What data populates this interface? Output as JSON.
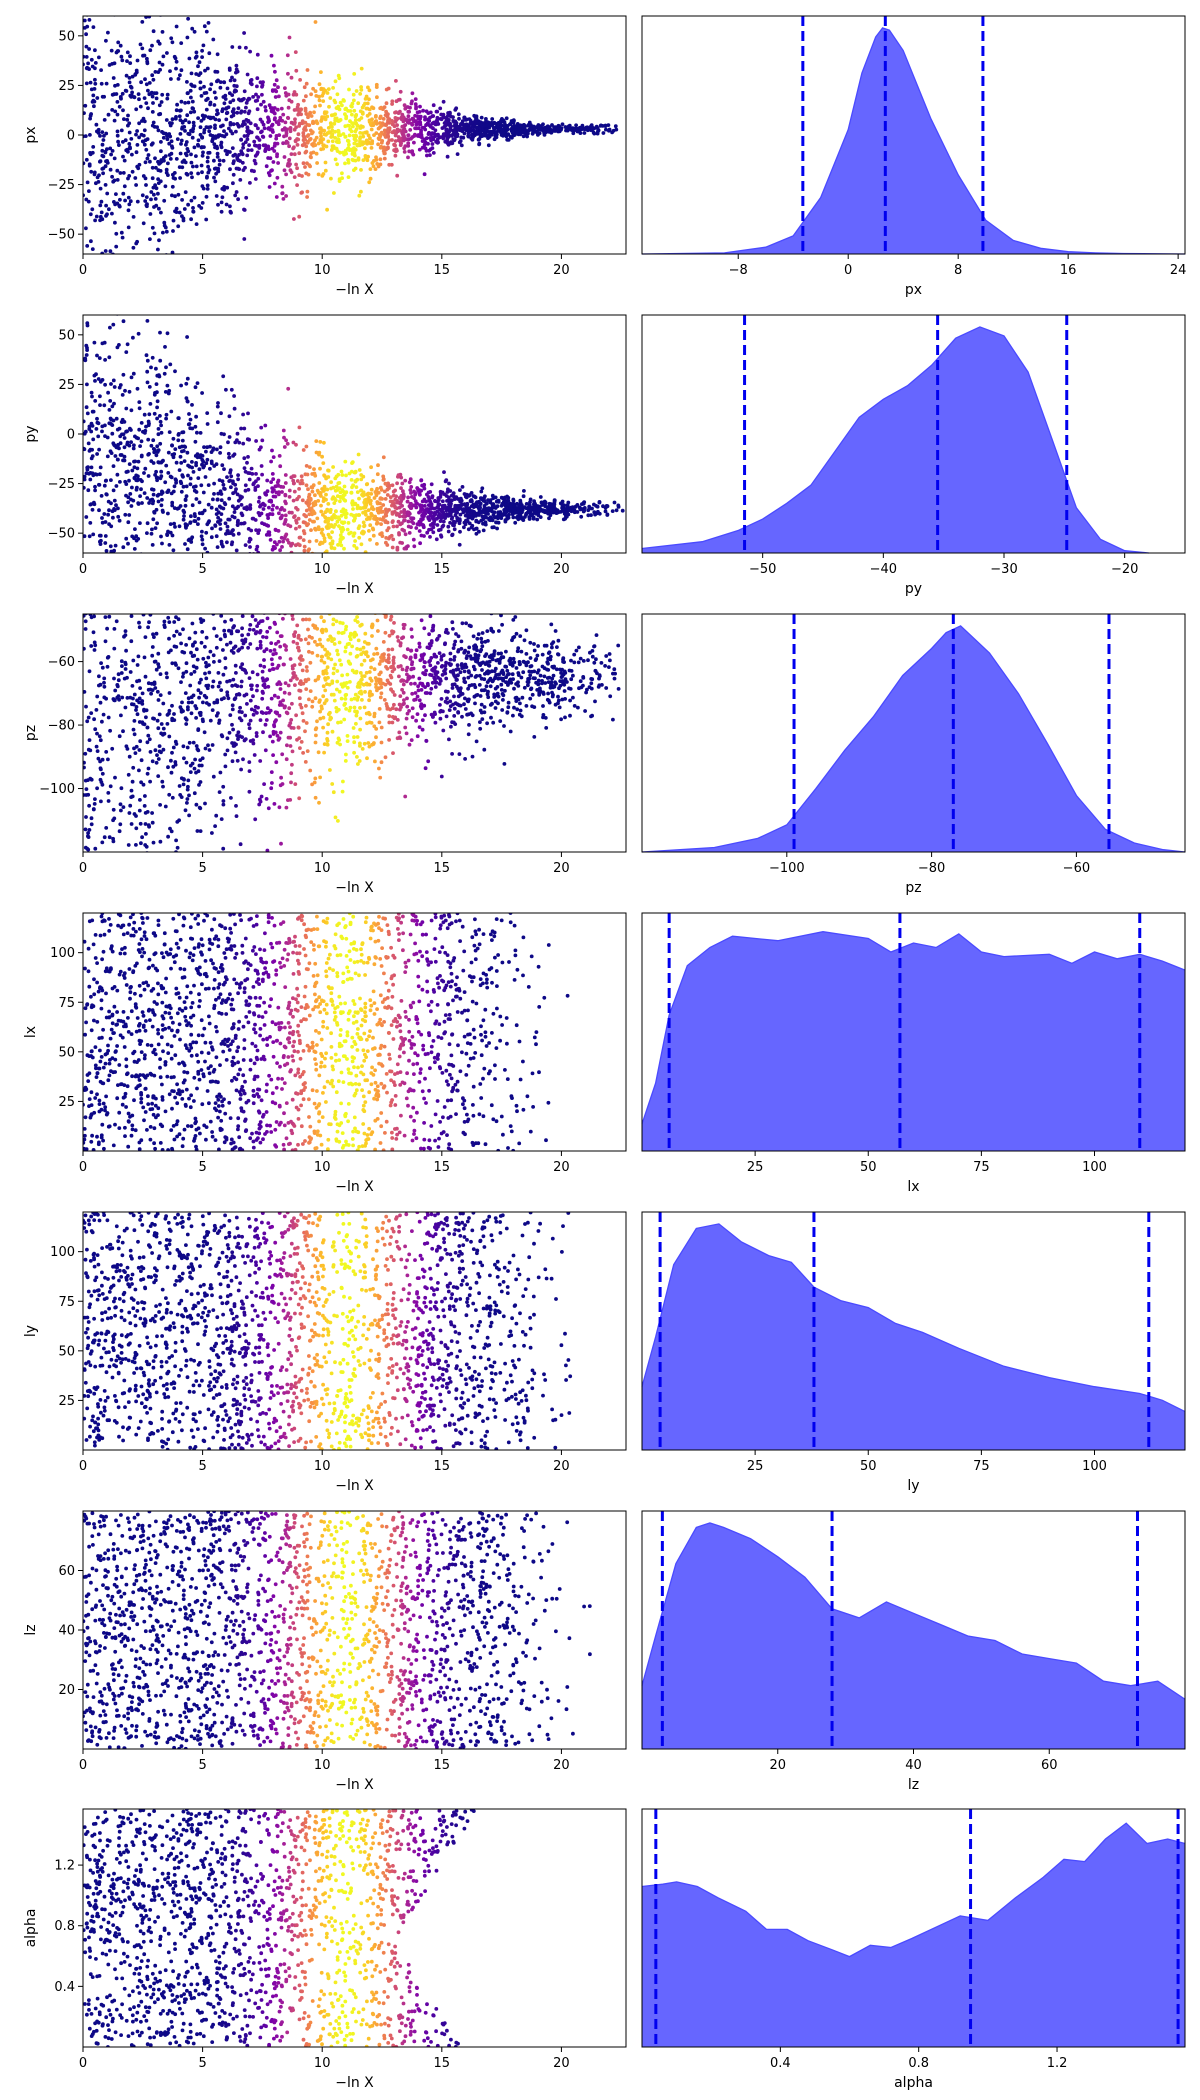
{
  "chart_data": [
    {
      "type": "scatter",
      "row": 0,
      "panel": "trace",
      "xlabel": "−ln X",
      "ylabel": "px",
      "xlim": [
        0,
        22.7
      ],
      "ylim": [
        -60,
        60
      ],
      "xticks": [
        0,
        5,
        10,
        15,
        20
      ],
      "yticks": [
        -50,
        -25,
        0,
        25,
        50
      ],
      "ytick_labels": [
        "−50",
        "−25",
        "0",
        "25",
        "50"
      ],
      "trace": {
        "spread_start": 70,
        "spread_end": 2,
        "center_start": 0,
        "center_end": 3,
        "tail_end": 22.4,
        "peak_x": 11,
        "peak_width": 2.6
      },
      "color_map": "plasma"
    },
    {
      "type": "area",
      "row": 0,
      "panel": "marginal",
      "xlabel": "px",
      "xlim": [
        -15,
        24.5
      ],
      "xticks": [
        -8,
        0,
        8,
        16,
        24
      ],
      "xtick_labels": [
        "−8",
        "0",
        "8",
        "16",
        "24"
      ],
      "x": [
        -15,
        -9,
        -6,
        -4,
        -2,
        0,
        1,
        2,
        2.5,
        3,
        4,
        6,
        8,
        10,
        12,
        14,
        16,
        18,
        20,
        24.5
      ],
      "density": [
        0,
        0.005,
        0.03,
        0.08,
        0.25,
        0.55,
        0.8,
        0.96,
        1.0,
        0.99,
        0.9,
        0.6,
        0.35,
        0.15,
        0.06,
        0.025,
        0.01,
        0.005,
        0.002,
        0
      ],
      "quantiles": [
        -3.3,
        2.7,
        9.8
      ],
      "fill_color": "#6666ff",
      "line_color": "#4a4aff",
      "quantile_color": "#0000ee"
    },
    {
      "type": "scatter",
      "row": 1,
      "panel": "trace",
      "xlabel": "−ln X",
      "ylabel": "py",
      "xlim": [
        0,
        22.7
      ],
      "ylim": [
        -60,
        60
      ],
      "xticks": [
        0,
        5,
        10,
        15,
        20
      ],
      "yticks": [
        -50,
        -25,
        0,
        25,
        50
      ],
      "ytick_labels": [
        "−50",
        "−25",
        "0",
        "25",
        "50"
      ],
      "trace": {
        "spread_start": 70,
        "spread_end": 4,
        "center_start": -5,
        "center_end": -38,
        "tail_end": 22.4,
        "peak_x": 11,
        "peak_width": 2.6
      },
      "color_map": "plasma"
    },
    {
      "type": "area",
      "row": 1,
      "panel": "marginal",
      "xlabel": "py",
      "xlim": [
        -60,
        -15
      ],
      "xticks": [
        -50,
        -40,
        -30,
        -20
      ],
      "xtick_labels": [
        "−50",
        "−40",
        "−30",
        "−20"
      ],
      "x": [
        -60,
        -55,
        -52,
        -50,
        -48,
        -46,
        -44,
        -42,
        -40,
        -38,
        -36,
        -34,
        -32,
        -30,
        -28,
        -26,
        -24,
        -22,
        -20,
        -18
      ],
      "density": [
        0.02,
        0.05,
        0.1,
        0.15,
        0.22,
        0.3,
        0.45,
        0.6,
        0.68,
        0.74,
        0.83,
        0.95,
        1.0,
        0.96,
        0.8,
        0.5,
        0.2,
        0.06,
        0.01,
        0
      ],
      "quantiles": [
        -51.5,
        -35.5,
        -24.8
      ],
      "fill_color": "#6666ff",
      "line_color": "#4a4aff",
      "quantile_color": "#0000ee"
    },
    {
      "type": "scatter",
      "row": 2,
      "panel": "trace",
      "xlabel": "−ln X",
      "ylabel": "pz",
      "xlim": [
        0,
        22.7
      ],
      "ylim": [
        -120,
        -45
      ],
      "xticks": [
        0,
        5,
        10,
        15,
        20
      ],
      "yticks": [
        -100,
        -80,
        -60
      ],
      "ytick_labels": [
        "−100",
        "−80",
        "−60"
      ],
      "trace": {
        "spread_start": 60,
        "spread_end": 12,
        "center_start": -85,
        "center_end": -65,
        "tail_end": 22.5,
        "peak_x": 11,
        "peak_width": 2.6
      },
      "color_map": "plasma"
    },
    {
      "type": "area",
      "row": 2,
      "panel": "marginal",
      "xlabel": "pz",
      "xlim": [
        -120,
        -45
      ],
      "xticks": [
        -100,
        -80,
        -60
      ],
      "xtick_labels": [
        "−100",
        "−80",
        "−60"
      ],
      "x": [
        -120,
        -110,
        -104,
        -100,
        -96,
        -92,
        -88,
        -84,
        -80,
        -78,
        -76,
        -72,
        -68,
        -64,
        -60,
        -56,
        -52,
        -48,
        -45
      ],
      "density": [
        0,
        0.02,
        0.06,
        0.12,
        0.28,
        0.45,
        0.6,
        0.78,
        0.9,
        0.97,
        1.0,
        0.88,
        0.7,
        0.48,
        0.25,
        0.1,
        0.04,
        0.01,
        0
      ],
      "quantiles": [
        -99,
        -77,
        -55.5
      ],
      "fill_color": "#6666ff",
      "line_color": "#4a4aff",
      "quantile_color": "#0000ee"
    },
    {
      "type": "scatter",
      "row": 3,
      "panel": "trace",
      "xlabel": "−ln X",
      "ylabel": "lx",
      "xlim": [
        0,
        22.7
      ],
      "ylim": [
        0,
        120
      ],
      "xticks": [
        0,
        5,
        10,
        15,
        20
      ],
      "yticks": [
        25,
        50,
        75,
        100
      ],
      "ytick_labels": [
        "25",
        "50",
        "75",
        "100"
      ],
      "trace": {
        "uniform": true,
        "cutoff_upper_start": 13,
        "cutoff_upper_end": 22.5,
        "cutoff_lower_start": 13,
        "cutoff_lower_end": 17,
        "peak_x": 11,
        "peak_width": 2.6
      },
      "color_map": "plasma"
    },
    {
      "type": "area",
      "row": 3,
      "panel": "marginal",
      "xlabel": "lx",
      "xlim": [
        0,
        120
      ],
      "xticks": [
        25,
        50,
        75,
        100
      ],
      "xtick_labels": [
        "25",
        "50",
        "75",
        "100"
      ],
      "x": [
        0,
        3,
        6,
        10,
        15,
        20,
        30,
        40,
        50,
        55,
        60,
        65,
        70,
        75,
        80,
        90,
        95,
        100,
        105,
        110,
        115,
        120
      ],
      "density": [
        0.12,
        0.3,
        0.6,
        0.82,
        0.9,
        0.95,
        0.93,
        0.97,
        0.94,
        0.88,
        0.92,
        0.9,
        0.96,
        0.88,
        0.86,
        0.87,
        0.83,
        0.88,
        0.85,
        0.87,
        0.84,
        0.8
      ],
      "quantiles": [
        6,
        57,
        110
      ],
      "fill_color": "#6666ff",
      "line_color": "#4a4aff",
      "quantile_color": "#0000ee"
    },
    {
      "type": "scatter",
      "row": 4,
      "panel": "trace",
      "xlabel": "−ln X",
      "ylabel": "ly",
      "xlim": [
        0,
        22.7
      ],
      "ylim": [
        0,
        120
      ],
      "xticks": [
        0,
        5,
        10,
        15,
        20
      ],
      "yticks": [
        25,
        50,
        75,
        100
      ],
      "ytick_labels": [
        "25",
        "50",
        "75",
        "100"
      ],
      "trace": {
        "uniform": true,
        "cutoff_upper_start": 16,
        "cutoff_upper_end": 22.5,
        "cutoff_lower_start": 16,
        "cutoff_lower_end": 22.5,
        "peak_x": 11,
        "peak_width": 2.6
      },
      "color_map": "plasma"
    },
    {
      "type": "area",
      "row": 4,
      "panel": "marginal",
      "xlabel": "ly",
      "xlim": [
        0,
        120
      ],
      "xticks": [
        25,
        50,
        75,
        100
      ],
      "xtick_labels": [
        "25",
        "50",
        "75",
        "100"
      ],
      "x": [
        0,
        3,
        7,
        12,
        17,
        22,
        28,
        33,
        38,
        44,
        50,
        56,
        62,
        70,
        80,
        90,
        100,
        110,
        115,
        120
      ],
      "density": [
        0.28,
        0.5,
        0.82,
        0.98,
        1.0,
        0.92,
        0.86,
        0.83,
        0.72,
        0.66,
        0.63,
        0.56,
        0.52,
        0.45,
        0.37,
        0.32,
        0.28,
        0.25,
        0.22,
        0.17
      ],
      "quantiles": [
        4,
        38,
        112
      ],
      "fill_color": "#6666ff",
      "line_color": "#4a4aff",
      "quantile_color": "#0000ee"
    },
    {
      "type": "scatter",
      "row": 5,
      "panel": "trace",
      "xlabel": "−ln X",
      "ylabel": "lz",
      "xlim": [
        0,
        22.7
      ],
      "ylim": [
        0,
        80
      ],
      "xticks": [
        0,
        5,
        10,
        15,
        20
      ],
      "yticks": [
        20,
        40,
        60
      ],
      "ytick_labels": [
        "20",
        "40",
        "60"
      ],
      "trace": {
        "uniform": true,
        "cutoff_upper_start": 16,
        "cutoff_upper_end": 22.5,
        "cutoff_lower_start": 16,
        "cutoff_lower_end": 22.5,
        "peak_x": 11,
        "peak_width": 2.6
      },
      "color_map": "plasma"
    },
    {
      "type": "area",
      "row": 5,
      "panel": "marginal",
      "xlabel": "lz",
      "xlim": [
        0,
        80
      ],
      "xticks": [
        20,
        40,
        60
      ],
      "xtick_labels": [
        "20",
        "40",
        "60"
      ],
      "x": [
        0,
        2,
        5,
        8,
        10,
        12,
        16,
        20,
        24,
        28,
        32,
        36,
        40,
        44,
        48,
        52,
        56,
        60,
        64,
        68,
        72,
        76,
        80
      ],
      "density": [
        0.28,
        0.5,
        0.82,
        0.98,
        1.0,
        0.98,
        0.93,
        0.85,
        0.76,
        0.62,
        0.58,
        0.65,
        0.6,
        0.55,
        0.5,
        0.48,
        0.42,
        0.4,
        0.38,
        0.3,
        0.28,
        0.3,
        0.22
      ],
      "quantiles": [
        3,
        28,
        73
      ],
      "fill_color": "#6666ff",
      "line_color": "#4a4aff",
      "quantile_color": "#0000ee"
    },
    {
      "type": "scatter",
      "row": 6,
      "panel": "trace",
      "xlabel": "−ln X",
      "ylabel": "alpha",
      "xlim": [
        0,
        22.7
      ],
      "ylim": [
        0,
        1.57
      ],
      "xticks": [
        0,
        5,
        10,
        15,
        20
      ],
      "yticks": [
        0.4,
        0.8,
        1.2
      ],
      "ytick_labels": [
        "0.4",
        "0.8",
        "1.2"
      ],
      "trace": {
        "uniform": true,
        "hole_start": 13,
        "hole_center": 0.7,
        "hole_growth": 0.25,
        "cutoff_upper_end": 22.5,
        "peak_x": 11,
        "peak_width": 2.6
      },
      "color_map": "plasma"
    },
    {
      "type": "area",
      "row": 6,
      "panel": "marginal",
      "xlabel": "alpha",
      "xlim": [
        0,
        1.57
      ],
      "xticks": [
        0.4,
        0.8,
        1.2
      ],
      "xtick_labels": [
        "0.4",
        "0.8",
        "1.2"
      ],
      "x": [
        0,
        0.06,
        0.1,
        0.16,
        0.22,
        0.3,
        0.36,
        0.42,
        0.48,
        0.55,
        0.6,
        0.66,
        0.72,
        0.78,
        0.85,
        0.92,
        1.0,
        1.08,
        1.16,
        1.22,
        1.28,
        1.34,
        1.4,
        1.46,
        1.52,
        1.57
      ],
      "density": [
        0.71,
        0.72,
        0.73,
        0.71,
        0.66,
        0.6,
        0.52,
        0.52,
        0.47,
        0.43,
        0.4,
        0.45,
        0.44,
        0.48,
        0.53,
        0.58,
        0.56,
        0.66,
        0.75,
        0.83,
        0.82,
        0.92,
        0.99,
        0.9,
        0.92,
        0.9
      ],
      "quantiles": [
        0.04,
        0.95,
        1.55
      ],
      "fill_color": "#6666ff",
      "line_color": "#4a4aff",
      "quantile_color": "#0000ee"
    }
  ]
}
